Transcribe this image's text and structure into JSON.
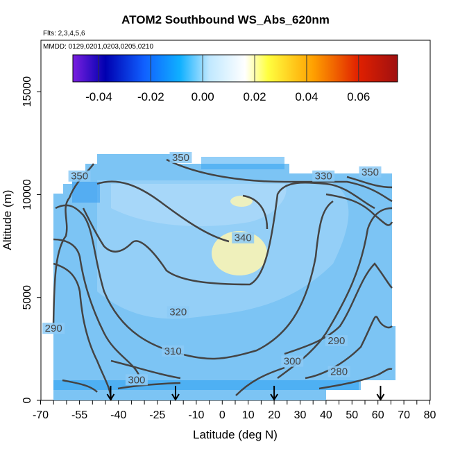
{
  "chart_data": {
    "type": "heatmap",
    "title": "ATOM2 Southbound WS_Abs_620nm",
    "subtitle_flights": "Flts: 2,3,4,5,6",
    "subtitle_dates": "MMDD: 0129,0201,0203,0205,0210",
    "xlabel": "Latitude (deg N)",
    "ylabel": "Altitude (m)",
    "xlim": [
      -70,
      80
    ],
    "ylim": [
      0,
      17500
    ],
    "x_tick_labels": [
      "-70",
      "-55",
      "-40",
      "-25",
      "-10",
      "0",
      "10",
      "20",
      "30",
      "40",
      "50",
      "60",
      "70",
      "80"
    ],
    "x_tick_values": [
      -70,
      -55,
      -40,
      -25,
      -10,
      0,
      10,
      20,
      30,
      40,
      50,
      60,
      70,
      80
    ],
    "y_tick_labels": [
      "0",
      "5000",
      "10000",
      "15000"
    ],
    "y_tick_values": [
      0,
      5000,
      10000,
      15000
    ],
    "colorbar": {
      "range": [
        -0.05,
        0.075
      ],
      "tick_labels": [
        "-0.04",
        "-0.02",
        "0.00",
        "0.02",
        "0.04",
        "0.06"
      ],
      "tick_values": [
        -0.04,
        -0.02,
        0.0,
        0.02,
        0.04,
        0.06
      ],
      "colors": [
        "#7a1fe0",
        "#0000b0",
        "#1060ff",
        "#10b0ff",
        "#ffffff",
        "#ffff40",
        "#ffa000",
        "#e02000",
        "#a01010"
      ]
    },
    "contour_labels": [
      {
        "text": "350",
        "lat": -55,
        "alt": 10800
      },
      {
        "text": "350",
        "lat": -16,
        "alt": 11700
      },
      {
        "text": "330",
        "lat": 39,
        "alt": 10800
      },
      {
        "text": "350",
        "lat": 57,
        "alt": 11000
      },
      {
        "text": "340",
        "lat": 8,
        "alt": 7800
      },
      {
        "text": "320",
        "lat": -17,
        "alt": 4200
      },
      {
        "text": "290",
        "lat": -65,
        "alt": 3400
      },
      {
        "text": "310",
        "lat": -19,
        "alt": 2300
      },
      {
        "text": "290",
        "lat": 44,
        "alt": 2800
      },
      {
        "text": "300",
        "lat": 27,
        "alt": 1800
      },
      {
        "text": "300",
        "lat": -33,
        "alt": 900
      },
      {
        "text": "280",
        "lat": 45,
        "alt": 1300
      }
    ],
    "vertical_profile_markers_lat": [
      -43,
      -18,
      20,
      61
    ]
  }
}
